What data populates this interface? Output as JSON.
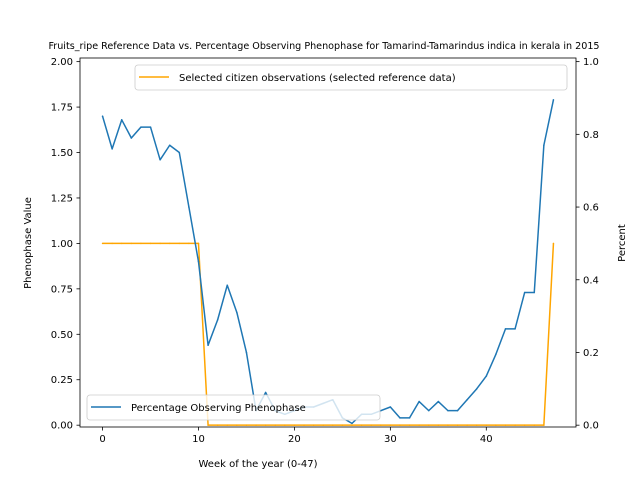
{
  "chart_data": {
    "type": "line",
    "title": "Fruits_ripe Reference Data vs. Percentage Observing Phenophase for Tamarind-Tamarindus indica in kerala in 2015",
    "xlabel": "Week of the year (0-47)",
    "ylabel_left": "Phenophase Value",
    "ylabel_right": "Percent",
    "xlim": [
      -2.35,
      49.35
    ],
    "ylim_left": [
      -0.01,
      2.02
    ],
    "ylim_right": [
      -0.005,
      1.01
    ],
    "x_ticks": [
      0,
      10,
      20,
      30,
      40
    ],
    "y_left_ticks": [
      "0.00",
      "0.25",
      "0.50",
      "0.75",
      "1.00",
      "1.25",
      "1.50",
      "1.75",
      "2.00"
    ],
    "y_right_ticks": [
      "0.0",
      "0.2",
      "0.4",
      "0.6",
      "0.8",
      "1.0"
    ],
    "grid": false,
    "series": [
      {
        "name": "Selected citizen observations (selected reference data)",
        "axis": "left",
        "color": "#ffa500",
        "legend_position": "top-right",
        "x": [
          0,
          1,
          2,
          3,
          4,
          5,
          6,
          7,
          8,
          9,
          10,
          11,
          12,
          13,
          14,
          15,
          16,
          17,
          18,
          19,
          20,
          21,
          22,
          23,
          24,
          25,
          26,
          27,
          28,
          29,
          30,
          31,
          32,
          33,
          34,
          35,
          36,
          37,
          38,
          39,
          40,
          41,
          42,
          43,
          44,
          45,
          46,
          47
        ],
        "values": [
          1,
          1,
          1,
          1,
          1,
          1,
          1,
          1,
          1,
          1,
          1,
          0,
          0,
          0,
          0,
          0,
          0,
          0,
          0,
          0,
          0,
          0,
          0,
          0,
          0,
          0,
          0,
          0,
          0,
          0,
          0,
          0,
          0,
          0,
          0,
          0,
          0,
          0,
          0,
          0,
          0,
          0,
          0,
          0,
          0,
          0,
          0,
          1
        ]
      },
      {
        "name": "Percentage Observing Phenophase",
        "axis": "right",
        "color": "#1f77b4",
        "legend_position": "bottom-left",
        "x": [
          0,
          1,
          2,
          3,
          4,
          5,
          6,
          7,
          8,
          9,
          10,
          11,
          12,
          13,
          14,
          15,
          16,
          17,
          18,
          19,
          20,
          21,
          22,
          23,
          24,
          25,
          26,
          27,
          28,
          29,
          30,
          31,
          32,
          33,
          34,
          35,
          36,
          37,
          38,
          39,
          40,
          41,
          42,
          43,
          44,
          45,
          46,
          47
        ],
        "values": [
          0.85,
          0.76,
          0.84,
          0.79,
          0.82,
          0.82,
          0.73,
          0.77,
          0.75,
          0.6,
          0.45,
          0.22,
          0.29,
          0.385,
          0.31,
          0.2,
          0.04,
          0.09,
          0.04,
          0.03,
          0.04,
          0.05,
          0.05,
          0.06,
          0.07,
          0.02,
          0.005,
          0.03,
          0.03,
          0.04,
          0.05,
          0.02,
          0.02,
          0.065,
          0.04,
          0.065,
          0.04,
          0.04,
          0.07,
          0.1,
          0.135,
          0.195,
          0.265,
          0.265,
          0.365,
          0.365,
          0.77,
          0.895
        ]
      }
    ]
  }
}
